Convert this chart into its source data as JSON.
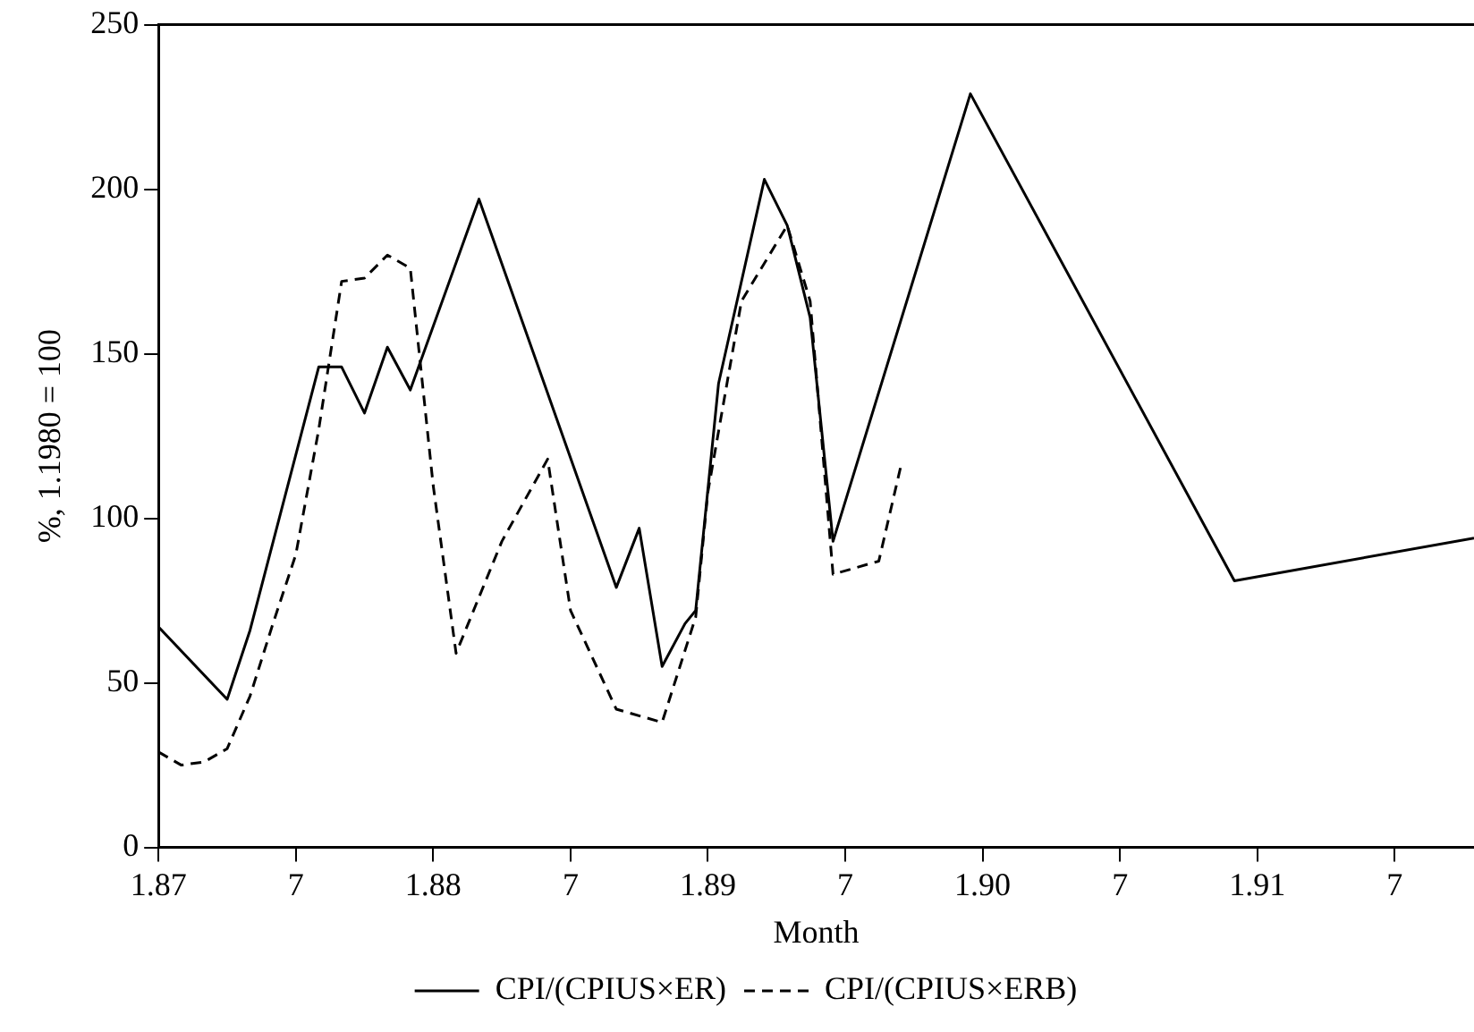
{
  "chart_data": {
    "type": "line",
    "xlabel": "Month",
    "ylabel": "%, 1.1980 = 100",
    "xlim": [
      "1987-01",
      "1991-10-15"
    ],
    "xticks": [
      {
        "value": "1987-01",
        "label": "1.87"
      },
      {
        "value": "1987-07",
        "label": "7"
      },
      {
        "value": "1988-01",
        "label": "1.88"
      },
      {
        "value": "1988-07",
        "label": "7"
      },
      {
        "value": "1989-01",
        "label": "1.89"
      },
      {
        "value": "1989-07",
        "label": "7"
      },
      {
        "value": "1990-01",
        "label": "1.90"
      },
      {
        "value": "1990-07",
        "label": "7"
      },
      {
        "value": "1991-01",
        "label": "1.91"
      },
      {
        "value": "1991-07",
        "label": "7"
      }
    ],
    "ylim": [
      0,
      250
    ],
    "yticks": [
      0,
      50,
      100,
      150,
      200,
      250
    ],
    "grid": false,
    "legend": "bottom",
    "marker": "none",
    "series": [
      {
        "name": "CPI/(CPIUS×ER)",
        "color": "#000000",
        "line_style": "solid",
        "x": [
          "1987-01",
          "1987-04",
          "1987-05",
          "1987-08",
          "1987-09",
          "1987-10",
          "1987-11",
          "1987-12",
          "1988-03",
          "1988-09",
          "1988-10",
          "1988-11",
          "1988-12",
          "1988-12-15",
          "1989-01-15",
          "1989-03-15",
          "1989-04-15",
          "1989-05-15",
          "1989-06-15",
          "1989-12-15",
          "1990-12",
          "1991-10-15"
        ],
        "values": [
          67,
          45,
          66,
          146,
          146,
          132,
          152,
          139,
          197,
          79,
          97,
          55,
          68,
          72,
          141,
          203,
          189,
          161,
          93,
          229,
          81,
          94
        ]
      },
      {
        "name": "CPI/(CPIUS×ERB)",
        "color": "#000000",
        "line_style": "dashed",
        "x": [
          "1987-01",
          "1987-02",
          "1987-03",
          "1987-04",
          "1987-05",
          "1987-06",
          "1987-07",
          "1987-08",
          "1987-09",
          "1987-10",
          "1987-11",
          "1987-12",
          "1988-01",
          "1988-02",
          "1988-04",
          "1988-06",
          "1988-07",
          "1988-09",
          "1988-11",
          "1988-12-15",
          "1989-01",
          "1989-02-15",
          "1989-04-15",
          "1989-05-15",
          "1989-06-15",
          "1989-08-15",
          "1989-09-15"
        ],
        "values": [
          29,
          25,
          26,
          30,
          46,
          68,
          89,
          127,
          172,
          173,
          180,
          176,
          110,
          59,
          93,
          118,
          72,
          42,
          38,
          70,
          108,
          166,
          189,
          166,
          83,
          87,
          117
        ]
      }
    ]
  }
}
